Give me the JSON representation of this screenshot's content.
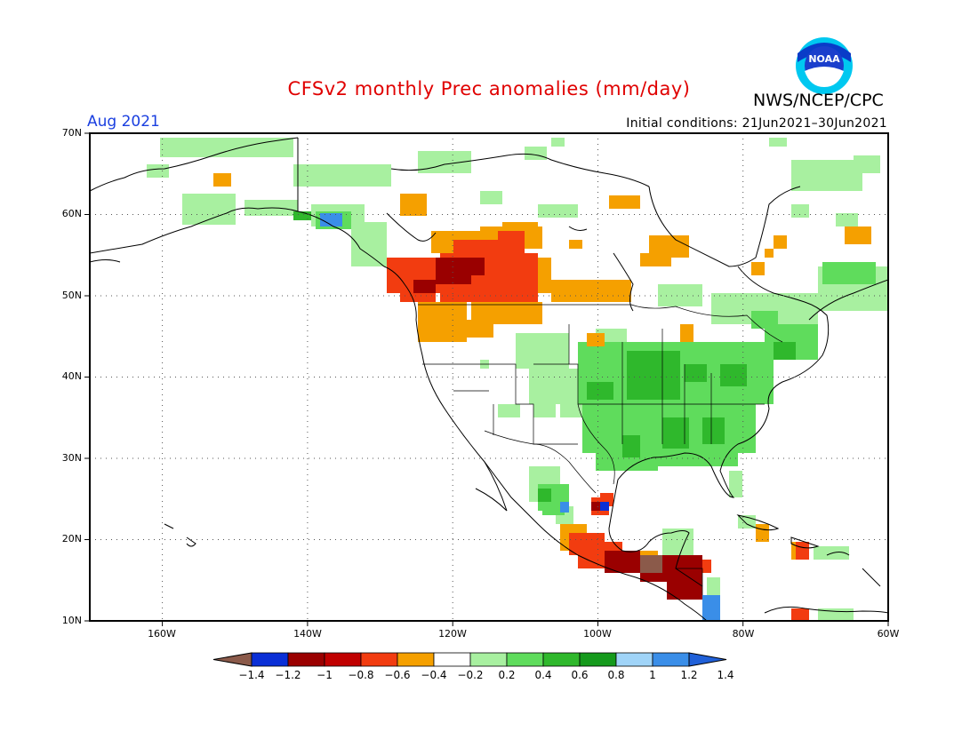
{
  "title": "CFSv2 monthly Prec anomalies (mm/day)",
  "month": "Aug 2021",
  "initial_conditions": "Initial conditions: 21Jun2021–30Jun2021",
  "agency": "NWS/NCEP/CPC",
  "logo_text": "NOAA",
  "lat_labels": [
    "70N",
    "60N",
    "50N",
    "40N",
    "30N",
    "20N",
    "10N"
  ],
  "lon_labels": [
    "160W",
    "140W",
    "120W",
    "100W",
    "80W",
    "60W"
  ],
  "colorbar": {
    "colors": [
      "#8b5a4a",
      "#0a2fd6",
      "#9a0000",
      "#c00000",
      "#f23c10",
      "#f5a000",
      "#ffffff",
      "#a8f0a0",
      "#5fdc5c",
      "#2fb82c",
      "#159a1c",
      "#a0d4f8",
      "#3a8ee8",
      "#2060d8"
    ],
    "labels": [
      "−1.4",
      "−1.2",
      "−1",
      "−0.8",
      "−0.6",
      "−0.4",
      "−0.2",
      "0.2",
      "0.4",
      "0.6",
      "0.8",
      "1",
      "1.2",
      "1.4"
    ]
  },
  "palette": {
    "dry_strong": "#9a0000",
    "dry_mid": "#f23c10",
    "dry_light": "#f5a000",
    "wet_light": "#a8f0a0",
    "wet_mid": "#5fdc5c",
    "wet_strong": "#2fb82c",
    "wet_max": "#3a8ee8"
  }
}
